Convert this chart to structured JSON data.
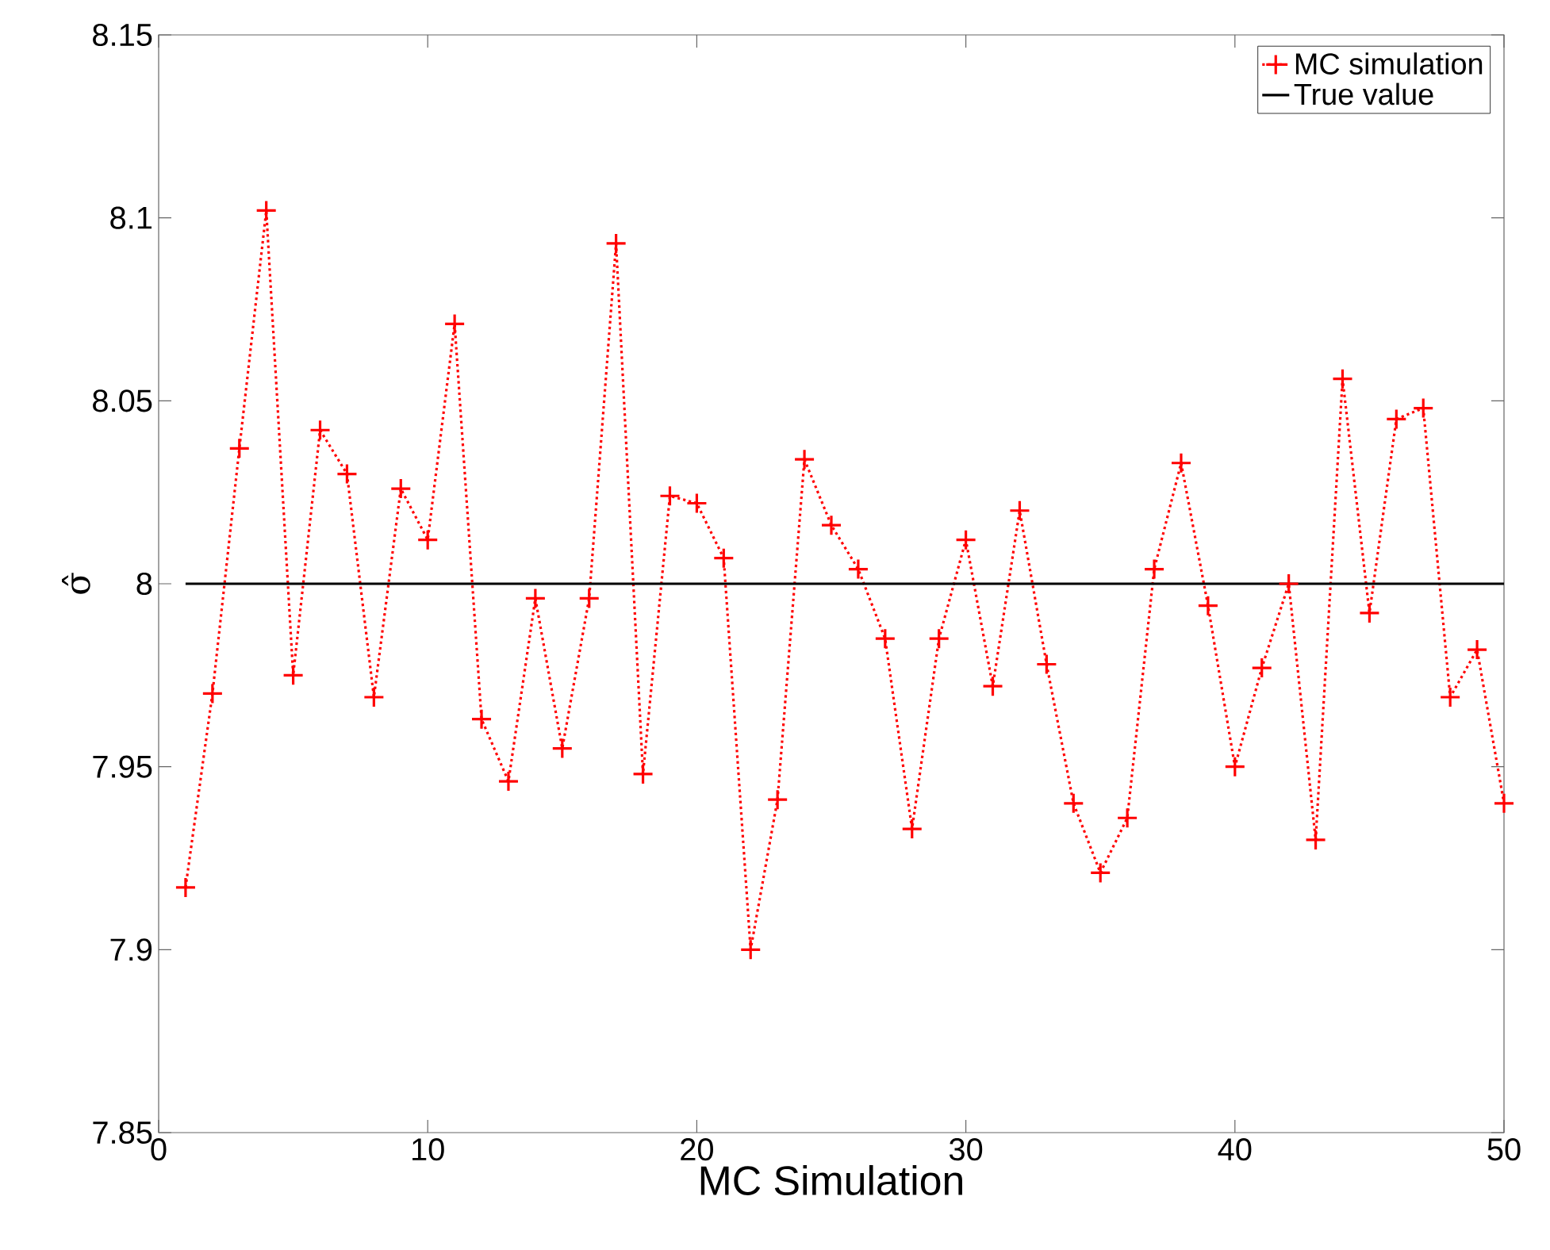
{
  "chart_data": {
    "type": "line",
    "xlabel": "MC Simulation",
    "ylabel": "σ̂",
    "x": [
      1,
      2,
      3,
      4,
      5,
      6,
      7,
      8,
      9,
      10,
      11,
      12,
      13,
      14,
      15,
      16,
      17,
      18,
      19,
      20,
      21,
      22,
      23,
      24,
      25,
      26,
      27,
      28,
      29,
      30,
      31,
      32,
      33,
      34,
      35,
      36,
      37,
      38,
      39,
      40,
      41,
      42,
      43,
      44,
      45,
      46,
      47,
      48,
      49,
      50
    ],
    "series": [
      {
        "name": "MC simulation",
        "color": "#ff0000",
        "marker": "cross",
        "line_style": "dotted",
        "values": [
          7.917,
          7.97,
          8.037,
          8.102,
          7.975,
          8.042,
          8.03,
          7.969,
          8.026,
          8.012,
          8.071,
          7.963,
          7.946,
          7.996,
          7.955,
          7.996,
          8.093,
          7.948,
          8.024,
          8.022,
          8.007,
          7.9,
          7.941,
          8.034,
          8.016,
          8.004,
          7.985,
          7.933,
          7.985,
          8.012,
          7.972,
          8.02,
          7.978,
          7.94,
          7.921,
          7.936,
          8.004,
          8.033,
          7.994,
          7.95,
          7.977,
          8.0,
          7.93,
          8.056,
          7.992,
          8.045,
          8.048,
          7.969,
          7.982,
          7.94
        ]
      },
      {
        "name": "True value",
        "color": "#000000",
        "marker": "none",
        "line_style": "solid",
        "x": [
          1,
          50
        ],
        "values": [
          8,
          8
        ]
      }
    ],
    "xlim": [
      0,
      50
    ],
    "xticks": [
      0,
      10,
      20,
      30,
      40,
      50
    ],
    "ylim": [
      7.85,
      8.15
    ],
    "yticks": [
      7.85,
      7.9,
      7.95,
      8,
      8.05,
      8.1,
      8.15
    ],
    "grid": false,
    "legend": "top right"
  }
}
